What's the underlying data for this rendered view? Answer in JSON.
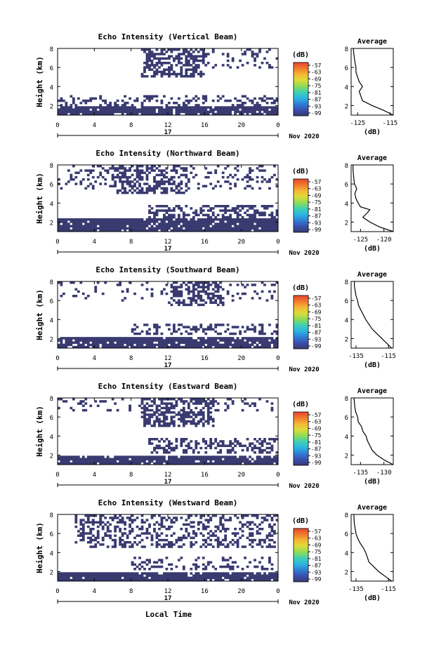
{
  "figure": {
    "xlabel": "Local Time",
    "date_label": "Nov 2020",
    "day_label": "17",
    "colorbar_unit": "(dB)",
    "colorbar_ticks": [
      "-57",
      "-63",
      "-69",
      "-75",
      "-81",
      "-87",
      "-93",
      "-99"
    ],
    "colors": {
      "echo": "#393a70",
      "colorbar_stops": [
        "#393a70",
        "#3a4fae",
        "#2f7fd6",
        "#2bb6e0",
        "#3fd0b2",
        "#8fdc55",
        "#dcdc3a",
        "#f5b733",
        "#f07a2e",
        "#e8452f"
      ]
    }
  },
  "chart_data": [
    {
      "type": "heatmap",
      "title": "Echo Intensity (Vertical Beam)",
      "xlabel": "Local Time",
      "ylabel": "Height (km)",
      "xticks": [
        "0",
        "4",
        "8",
        "12",
        "16",
        "20",
        "0"
      ],
      "yticks": [
        "2",
        "4",
        "6",
        "8"
      ],
      "xlim": [
        0,
        24
      ],
      "ylim": [
        1,
        8
      ],
      "z_unit": "dB",
      "zlim": [
        -99,
        -57
      ],
      "echo_layers": [
        {
          "x_start": 0,
          "x_end": 24,
          "h_low": 1.0,
          "h_high": 2.0,
          "coverage": 0.92
        },
        {
          "x_start": 0,
          "x_end": 24,
          "h_low": 2.0,
          "h_high": 3.2,
          "coverage": 0.3
        },
        {
          "x_start": 9,
          "x_end": 16,
          "h_low": 5.0,
          "h_high": 8.0,
          "coverage": 0.55
        },
        {
          "x_start": 16,
          "x_end": 24,
          "h_low": 6.0,
          "h_high": 8.0,
          "coverage": 0.18
        }
      ],
      "average": {
        "title": "Average",
        "xlabel": "(dB)",
        "xticks": [
          "-125",
          "-115"
        ],
        "yticks": [
          "2",
          "4",
          "6",
          "8"
        ],
        "xlim": [
          -127,
          -114
        ],
        "ylim": [
          1,
          8
        ],
        "profile_h": [
          1.0,
          1.5,
          2.0,
          2.5,
          3.0,
          3.5,
          4.0,
          4.5,
          5.0,
          5.5,
          6.0,
          6.5,
          7.0,
          7.5,
          8.0
        ],
        "profile_db": [
          -114,
          -117,
          -120.5,
          -123.5,
          -124,
          -124.5,
          -123.5,
          -124.5,
          -125,
          -125.5,
          -125.5,
          -125.8,
          -126,
          -126.2,
          -126.3
        ]
      }
    },
    {
      "type": "heatmap",
      "title": "Echo Intensity (Northward Beam)",
      "xlabel": "Local Time",
      "ylabel": "Height (km)",
      "xticks": [
        "0",
        "4",
        "8",
        "12",
        "16",
        "20",
        "0"
      ],
      "yticks": [
        "2",
        "4",
        "6",
        "8"
      ],
      "xlim": [
        0,
        24
      ],
      "ylim": [
        1,
        8
      ],
      "z_unit": "dB",
      "zlim": [
        -99,
        -57
      ],
      "echo_layers": [
        {
          "x_start": 0,
          "x_end": 24,
          "h_low": 1.0,
          "h_high": 2.3,
          "coverage": 0.95
        },
        {
          "x_start": 10,
          "x_end": 24,
          "h_low": 2.5,
          "h_high": 3.8,
          "coverage": 0.45
        },
        {
          "x_start": 6,
          "x_end": 14,
          "h_low": 5.0,
          "h_high": 8.0,
          "coverage": 0.55
        },
        {
          "x_start": 0,
          "x_end": 24,
          "h_low": 5.5,
          "h_high": 8.0,
          "coverage": 0.2
        }
      ],
      "average": {
        "title": "Average",
        "xlabel": "(dB)",
        "xticks": [
          "-125",
          "-120"
        ],
        "yticks": [
          "2",
          "4",
          "6",
          "8"
        ],
        "xlim": [
          -127,
          -118
        ],
        "ylim": [
          1,
          8
        ],
        "profile_h": [
          1.0,
          1.5,
          2.0,
          2.5,
          3.0,
          3.3,
          3.6,
          4.0,
          4.5,
          5.0,
          5.5,
          6.0,
          6.5,
          7.0,
          7.5,
          8.0
        ],
        "profile_db": [
          -118,
          -121,
          -123,
          -124.5,
          -123.5,
          -123,
          -125,
          -125.5,
          -126,
          -126.2,
          -125.8,
          -126.3,
          -126.4,
          -126.5,
          -126.6,
          -126.6
        ]
      }
    },
    {
      "type": "heatmap",
      "title": "Echo Intensity (Southward Beam)",
      "xlabel": "Local Time",
      "ylabel": "Height (km)",
      "xticks": [
        "0",
        "4",
        "8",
        "12",
        "16",
        "20",
        "0"
      ],
      "yticks": [
        "2",
        "4",
        "6",
        "8"
      ],
      "xlim": [
        0,
        24
      ],
      "ylim": [
        1,
        8
      ],
      "z_unit": "dB",
      "zlim": [
        -99,
        -57
      ],
      "echo_layers": [
        {
          "x_start": 0,
          "x_end": 24,
          "h_low": 1.0,
          "h_high": 2.2,
          "coverage": 0.9
        },
        {
          "x_start": 8,
          "x_end": 24,
          "h_low": 2.5,
          "h_high": 3.5,
          "coverage": 0.35
        },
        {
          "x_start": 12,
          "x_end": 18,
          "h_low": 5.5,
          "h_high": 8.0,
          "coverage": 0.5
        },
        {
          "x_start": 0,
          "x_end": 24,
          "h_low": 6.0,
          "h_high": 8.0,
          "coverage": 0.12
        }
      ],
      "average": {
        "title": "Average",
        "xlabel": "(dB)",
        "xticks": [
          "-135",
          "-115"
        ],
        "yticks": [
          "2",
          "4",
          "6",
          "8"
        ],
        "xlim": [
          -138,
          -112
        ],
        "ylim": [
          1,
          8
        ],
        "profile_h": [
          1.0,
          1.5,
          2.0,
          2.5,
          3.0,
          3.5,
          4.0,
          4.5,
          5.0,
          5.5,
          6.0,
          6.5,
          7.0,
          7.5,
          8.0
        ],
        "profile_db": [
          -113,
          -116,
          -119,
          -122,
          -125,
          -127,
          -129,
          -130.5,
          -132,
          -133.5,
          -134,
          -135,
          -135.5,
          -136,
          -136
        ]
      }
    },
    {
      "type": "heatmap",
      "title": "Echo Intensity (Eastward Beam)",
      "xlabel": "Local Time",
      "ylabel": "Height (km)",
      "xticks": [
        "0",
        "4",
        "8",
        "12",
        "16",
        "20",
        "0"
      ],
      "yticks": [
        "2",
        "4",
        "6",
        "8"
      ],
      "xlim": [
        0,
        24
      ],
      "ylim": [
        1,
        8
      ],
      "z_unit": "dB",
      "zlim": [
        -99,
        -57
      ],
      "echo_layers": [
        {
          "x_start": 0,
          "x_end": 24,
          "h_low": 1.0,
          "h_high": 2.0,
          "coverage": 0.93
        },
        {
          "x_start": 10,
          "x_end": 24,
          "h_low": 2.2,
          "h_high": 3.8,
          "coverage": 0.4
        },
        {
          "x_start": 9,
          "x_end": 17,
          "h_low": 5.0,
          "h_high": 8.0,
          "coverage": 0.55
        },
        {
          "x_start": 0,
          "x_end": 24,
          "h_low": 6.5,
          "h_high": 8.0,
          "coverage": 0.15
        }
      ],
      "average": {
        "title": "Average",
        "xlabel": "(dB)",
        "xticks": [
          "-135",
          "-130"
        ],
        "yticks": [
          "2",
          "4",
          "6",
          "8"
        ],
        "xlim": [
          -137,
          -128
        ],
        "ylim": [
          1,
          8
        ],
        "profile_h": [
          1.0,
          1.5,
          2.0,
          2.5,
          3.0,
          3.5,
          4.0,
          4.5,
          5.0,
          5.5,
          6.0,
          6.5,
          7.0,
          7.5,
          8.0
        ],
        "profile_db": [
          -128,
          -130,
          -131.5,
          -132.5,
          -133,
          -133.5,
          -133.8,
          -134.5,
          -134.8,
          -135.5,
          -135.6,
          -136,
          -136.2,
          -136.3,
          -136.4
        ]
      }
    },
    {
      "type": "heatmap",
      "title": "Echo Intensity (Westward Beam)",
      "xlabel": "Local Time",
      "ylabel": "Height (km)",
      "xticks": [
        "0",
        "4",
        "8",
        "12",
        "16",
        "20",
        "0"
      ],
      "yticks": [
        "2",
        "4",
        "6",
        "8"
      ],
      "xlim": [
        0,
        24
      ],
      "ylim": [
        1,
        8
      ],
      "z_unit": "dB",
      "zlim": [
        -99,
        -57
      ],
      "echo_layers": [
        {
          "x_start": 0,
          "x_end": 24,
          "h_low": 1.0,
          "h_high": 2.0,
          "coverage": 0.93
        },
        {
          "x_start": 8,
          "x_end": 24,
          "h_low": 2.2,
          "h_high": 3.5,
          "coverage": 0.3
        },
        {
          "x_start": 2,
          "x_end": 24,
          "h_low": 4.5,
          "h_high": 8.0,
          "coverage": 0.35
        }
      ],
      "average": {
        "title": "Average",
        "xlabel": "(dB)",
        "xticks": [
          "-135",
          "-115"
        ],
        "yticks": [
          "2",
          "4",
          "6",
          "8"
        ],
        "xlim": [
          -138,
          -112
        ],
        "ylim": [
          1,
          8
        ],
        "profile_h": [
          1.0,
          1.5,
          2.0,
          2.5,
          3.0,
          3.5,
          4.0,
          4.5,
          5.0,
          5.5,
          6.0,
          6.5,
          7.0,
          7.5,
          8.0
        ],
        "profile_db": [
          -113,
          -117,
          -121,
          -124,
          -127,
          -128,
          -129,
          -130.5,
          -132.5,
          -134,
          -135,
          -135.5,
          -136,
          -136.2,
          -136.3
        ]
      }
    }
  ]
}
